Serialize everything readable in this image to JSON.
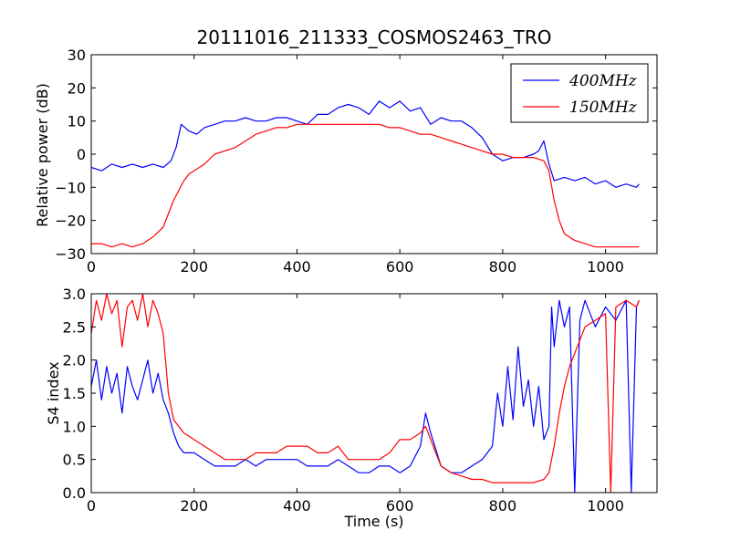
{
  "figure": {
    "title": "20111016_211333_COSMOS2463_TRO",
    "colors": {
      "400MHz": "#0000ff",
      "150MHz": "#ff0000"
    }
  },
  "chart_data": [
    {
      "type": "line",
      "title": "20111016_211333_COSMOS2463_TRO",
      "xlabel": "",
      "ylabel": "Relative power (dB)",
      "xlim": [
        0,
        1100
      ],
      "ylim": [
        -30,
        30
      ],
      "xticks": [
        0,
        200,
        400,
        600,
        800,
        1000
      ],
      "yticks": [
        -30,
        -20,
        -10,
        0,
        10,
        20,
        30
      ],
      "legend": {
        "placement": "top-right",
        "entries": [
          "400MHz",
          "150MHz"
        ]
      },
      "series": [
        {
          "name": "400MHz",
          "color": "#0000ff",
          "x": [
            0,
            20,
            40,
            60,
            80,
            100,
            120,
            140,
            155,
            165,
            175,
            190,
            205,
            220,
            240,
            260,
            280,
            300,
            320,
            340,
            360,
            380,
            400,
            420,
            440,
            460,
            480,
            500,
            520,
            540,
            560,
            580,
            600,
            620,
            640,
            660,
            680,
            700,
            720,
            740,
            760,
            780,
            800,
            820,
            840,
            860,
            870,
            880,
            890,
            900,
            920,
            940,
            960,
            980,
            1000,
            1020,
            1040,
            1060,
            1065
          ],
          "y": [
            -4,
            -5,
            -3,
            -4,
            -3,
            -4,
            -3,
            -4,
            -2,
            2,
            9,
            7,
            6,
            8,
            9,
            10,
            10,
            11,
            10,
            10,
            11,
            11,
            10,
            9,
            12,
            12,
            14,
            15,
            14,
            12,
            16,
            14,
            16,
            13,
            14,
            9,
            11,
            10,
            10,
            8,
            5,
            0,
            -2,
            -1,
            -1,
            0,
            1,
            4,
            -3,
            -8,
            -7,
            -8,
            -7,
            -9,
            -8,
            -10,
            -9,
            -10,
            -9
          ]
        },
        {
          "name": "150MHz",
          "color": "#ff0000",
          "x": [
            0,
            20,
            40,
            60,
            80,
            100,
            120,
            140,
            150,
            160,
            170,
            180,
            190,
            200,
            220,
            240,
            260,
            280,
            300,
            320,
            340,
            360,
            380,
            400,
            420,
            440,
            460,
            480,
            500,
            520,
            540,
            560,
            580,
            600,
            620,
            640,
            660,
            680,
            700,
            720,
            740,
            760,
            780,
            800,
            820,
            840,
            860,
            880,
            890,
            900,
            910,
            920,
            940,
            960,
            980,
            1000,
            1020,
            1040,
            1060,
            1065
          ],
          "y": [
            -27,
            -27,
            -28,
            -27,
            -28,
            -27,
            -25,
            -22,
            -18,
            -14,
            -11,
            -8,
            -6,
            -5,
            -3,
            0,
            1,
            2,
            4,
            6,
            7,
            8,
            8,
            9,
            9,
            9,
            9,
            9,
            9,
            9,
            9,
            9,
            8,
            8,
            7,
            6,
            6,
            5,
            4,
            3,
            2,
            1,
            0,
            0,
            -1,
            -1,
            -1,
            -2,
            -5,
            -14,
            -20,
            -24,
            -26,
            -27,
            -28,
            -28,
            -28,
            -28,
            -28,
            -28
          ]
        }
      ]
    },
    {
      "type": "line",
      "title": "",
      "xlabel": "Time (s)",
      "ylabel": "S4 index",
      "xlim": [
        0,
        1100
      ],
      "ylim": [
        0,
        3
      ],
      "xticks": [
        0,
        200,
        400,
        600,
        800,
        1000
      ],
      "yticks": [
        0.0,
        0.5,
        1.0,
        1.5,
        2.0,
        2.5,
        3.0
      ],
      "series": [
        {
          "name": "400MHz",
          "color": "#0000ff",
          "x": [
            0,
            10,
            20,
            30,
            40,
            50,
            60,
            70,
            80,
            90,
            100,
            110,
            120,
            130,
            140,
            150,
            160,
            170,
            180,
            200,
            220,
            240,
            260,
            280,
            300,
            320,
            340,
            360,
            380,
            400,
            420,
            440,
            460,
            480,
            500,
            520,
            540,
            560,
            580,
            600,
            620,
            640,
            650,
            660,
            680,
            700,
            720,
            740,
            760,
            780,
            790,
            800,
            810,
            820,
            830,
            840,
            850,
            860,
            870,
            880,
            890,
            895,
            900,
            910,
            920,
            930,
            940,
            950,
            960,
            980,
            1000,
            1020,
            1040,
            1050,
            1060,
            1065
          ],
          "y": [
            1.6,
            2.0,
            1.4,
            1.9,
            1.5,
            1.8,
            1.2,
            1.9,
            1.6,
            1.4,
            1.7,
            2.0,
            1.5,
            1.8,
            1.4,
            1.2,
            0.9,
            0.7,
            0.6,
            0.6,
            0.5,
            0.4,
            0.4,
            0.4,
            0.5,
            0.4,
            0.5,
            0.5,
            0.5,
            0.5,
            0.4,
            0.4,
            0.4,
            0.5,
            0.4,
            0.3,
            0.3,
            0.4,
            0.4,
            0.3,
            0.4,
            0.7,
            1.2,
            0.9,
            0.4,
            0.3,
            0.3,
            0.4,
            0.5,
            0.7,
            1.5,
            1.0,
            1.9,
            1.1,
            2.2,
            1.3,
            1.7,
            1.0,
            1.6,
            0.8,
            1.0,
            2.8,
            2.2,
            2.9,
            2.5,
            2.8,
            0.0,
            2.6,
            2.9,
            2.5,
            2.8,
            2.6,
            2.9,
            0.0,
            2.8,
            2.9
          ]
        },
        {
          "name": "150MHz",
          "color": "#ff0000",
          "x": [
            0,
            10,
            20,
            30,
            40,
            50,
            60,
            70,
            80,
            90,
            100,
            110,
            120,
            130,
            140,
            150,
            160,
            170,
            180,
            200,
            220,
            240,
            260,
            280,
            300,
            320,
            340,
            360,
            380,
            400,
            420,
            440,
            460,
            480,
            500,
            520,
            540,
            560,
            580,
            600,
            620,
            640,
            650,
            660,
            670,
            680,
            700,
            720,
            740,
            760,
            780,
            800,
            820,
            840,
            860,
            880,
            890,
            900,
            910,
            920,
            930,
            940,
            950,
            960,
            980,
            1000,
            1010,
            1020,
            1040,
            1060,
            1065
          ],
          "y": [
            2.4,
            2.9,
            2.6,
            3.0,
            2.7,
            2.9,
            2.2,
            2.8,
            2.9,
            2.6,
            3.0,
            2.5,
            2.9,
            2.7,
            2.4,
            1.5,
            1.1,
            1.0,
            0.9,
            0.8,
            0.7,
            0.6,
            0.5,
            0.5,
            0.5,
            0.6,
            0.6,
            0.6,
            0.7,
            0.7,
            0.7,
            0.6,
            0.6,
            0.7,
            0.5,
            0.5,
            0.5,
            0.5,
            0.6,
            0.8,
            0.8,
            0.9,
            1.0,
            0.8,
            0.6,
            0.4,
            0.3,
            0.25,
            0.2,
            0.2,
            0.15,
            0.15,
            0.15,
            0.15,
            0.15,
            0.2,
            0.3,
            0.7,
            1.2,
            1.6,
            1.9,
            2.1,
            2.3,
            2.5,
            2.6,
            2.7,
            0.0,
            2.8,
            2.9,
            2.8,
            2.9
          ]
        }
      ]
    }
  ]
}
